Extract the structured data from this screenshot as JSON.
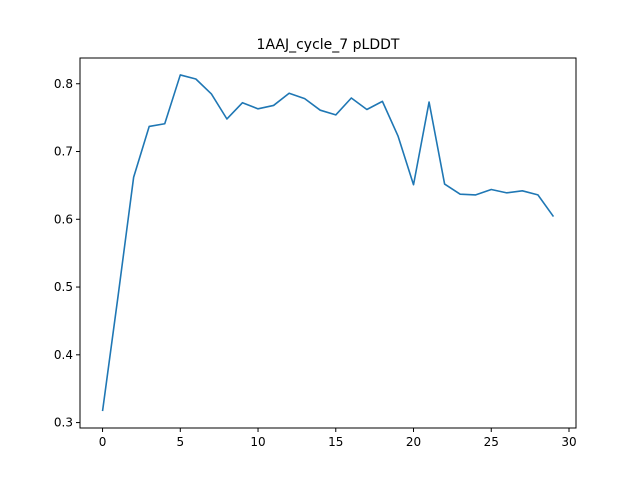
{
  "chart_data": {
    "type": "line",
    "title": "1AAJ_cycle_7 pLDDT",
    "xlabel": "",
    "ylabel": "",
    "x": [
      0,
      1,
      2,
      3,
      4,
      5,
      6,
      7,
      8,
      9,
      10,
      11,
      12,
      13,
      14,
      15,
      16,
      17,
      18,
      19,
      20,
      21,
      22,
      23,
      24,
      25,
      26,
      27,
      28,
      29
    ],
    "series": [
      {
        "values": [
          0.317,
          0.487,
          0.662,
          0.737,
          0.741,
          0.813,
          0.807,
          0.785,
          0.748,
          0.772,
          0.763,
          0.768,
          0.786,
          0.778,
          0.761,
          0.754,
          0.779,
          0.762,
          0.774,
          0.723,
          0.651,
          0.773,
          0.652,
          0.637,
          0.636,
          0.644,
          0.639,
          0.642,
          0.636,
          0.604
        ],
        "color": "#1f77b4"
      }
    ],
    "xlim": [
      -1.45,
      30.45
    ],
    "ylim": [
      0.292,
      0.838
    ],
    "xticks": [
      0,
      5,
      10,
      15,
      20,
      25,
      30
    ],
    "xtick_labels": [
      "0",
      "5",
      "10",
      "15",
      "20",
      "25",
      "30"
    ],
    "yticks": [
      0.3,
      0.4,
      0.5,
      0.6,
      0.7,
      0.8
    ],
    "ytick_labels": [
      "0.3",
      "0.4",
      "0.5",
      "0.6",
      "0.7",
      "0.8"
    ],
    "grid": false,
    "legend": "none"
  }
}
